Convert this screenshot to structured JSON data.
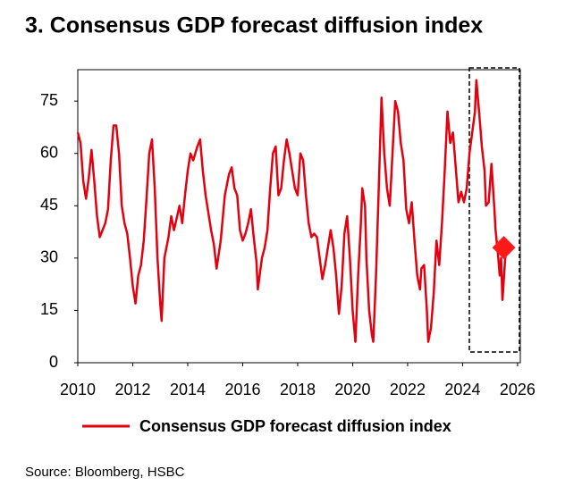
{
  "chart_data": {
    "type": "line",
    "title": "3. Consensus GDP forecast diffusion index",
    "source": "Source: Bloomberg, HSBC",
    "xlim": [
      2010,
      2026.1
    ],
    "ylim": [
      0,
      84
    ],
    "xticks": [
      2010,
      2012,
      2014,
      2016,
      2018,
      2020,
      2022,
      2024,
      2026
    ],
    "yticks": [
      0,
      15,
      30,
      45,
      60,
      75
    ],
    "grid": false,
    "legend": "bottom",
    "x": [
      2010.0,
      2010.1,
      2010.2,
      2010.3,
      2010.4,
      2010.5,
      2010.6,
      2010.7,
      2010.8,
      2010.9,
      2011.0,
      2011.1,
      2011.2,
      2011.3,
      2011.4,
      2011.5,
      2011.6,
      2011.7,
      2011.8,
      2011.9,
      2012.0,
      2012.1,
      2012.2,
      2012.3,
      2012.4,
      2012.5,
      2012.6,
      2012.7,
      2012.8,
      2012.9,
      2013.0,
      2013.05,
      2013.15,
      2013.3,
      2013.4,
      2013.5,
      2013.7,
      2013.8,
      2013.9,
      2014.0,
      2014.1,
      2014.2,
      2014.35,
      2014.45,
      2014.55,
      2014.65,
      2014.75,
      2014.85,
      2014.95,
      2015.05,
      2015.2,
      2015.35,
      2015.5,
      2015.6,
      2015.7,
      2015.8,
      2015.9,
      2016.0,
      2016.1,
      2016.2,
      2016.3,
      2016.4,
      2016.5,
      2016.55,
      2016.7,
      2016.8,
      2016.9,
      2017.0,
      2017.1,
      2017.2,
      2017.3,
      2017.4,
      2017.5,
      2017.6,
      2017.7,
      2017.8,
      2017.9,
      2018.0,
      2018.1,
      2018.2,
      2018.3,
      2018.4,
      2018.5,
      2018.6,
      2018.7,
      2018.8,
      2018.9,
      2019.0,
      2019.1,
      2019.2,
      2019.3,
      2019.4,
      2019.5,
      2019.6,
      2019.7,
      2019.8,
      2019.9,
      2020.0,
      2020.1,
      2020.2,
      2020.3,
      2020.35,
      2020.45,
      2020.5,
      2020.6,
      2020.7,
      2020.75,
      2020.85,
      2020.95,
      2021.05,
      2021.15,
      2021.25,
      2021.35,
      2021.45,
      2021.55,
      2021.65,
      2021.75,
      2021.85,
      2021.95,
      2022.05,
      2022.15,
      2022.25,
      2022.35,
      2022.45,
      2022.5,
      2022.6,
      2022.7,
      2022.75,
      2022.85,
      2022.95,
      2023.05,
      2023.15,
      2023.25,
      2023.35,
      2023.45,
      2023.55,
      2023.65,
      2023.75,
      2023.85,
      2023.95,
      2024.05,
      2024.15,
      2024.25,
      2024.35,
      2024.45,
      2024.5,
      2024.6,
      2024.7,
      2024.8,
      2024.85,
      2024.95,
      2025.05,
      2025.15,
      2025.2,
      2025.3,
      2025.35,
      2025.4,
      2025.45,
      2025.55,
      2025.6
    ],
    "series": [
      {
        "name": "Consensus GDP forecast diffusion index",
        "color": "#e3000f",
        "values": [
          66,
          63,
          52,
          47,
          53,
          61,
          52,
          42,
          36,
          38,
          40,
          44,
          58,
          68,
          68,
          60,
          45,
          40,
          37,
          30,
          22,
          17,
          25,
          28,
          35,
          47,
          60,
          64,
          50,
          30,
          17,
          12,
          30,
          36,
          42,
          38,
          45,
          40,
          48,
          55,
          60,
          58,
          62,
          64,
          55,
          48,
          43,
          38,
          34,
          27,
          35,
          48,
          54,
          56,
          50,
          48,
          38,
          35,
          37,
          40,
          44,
          36,
          29,
          21,
          30,
          33,
          38,
          50,
          60,
          62,
          48,
          50,
          58,
          64,
          60,
          55,
          50,
          48,
          60,
          58,
          48,
          40,
          36,
          37,
          36,
          30,
          24,
          28,
          33,
          38,
          33,
          25,
          14,
          22,
          37,
          42,
          30,
          15,
          6,
          25,
          40,
          50,
          45,
          30,
          15,
          8,
          6,
          25,
          50,
          76,
          60,
          50,
          45,
          60,
          75,
          72,
          63,
          58,
          44,
          40,
          46,
          35,
          25,
          21,
          27,
          28,
          15,
          6,
          10,
          20,
          35,
          28,
          40,
          55,
          72,
          63,
          66,
          56,
          46,
          49,
          46,
          50,
          60,
          66,
          72,
          81,
          72,
          62,
          55,
          45,
          46,
          57,
          45,
          38,
          30,
          25,
          30,
          18,
          30,
          33
        ]
      }
    ],
    "forecast_point": {
      "x": 2025.5,
      "y": 33,
      "color": "#ff1a1a"
    }
  }
}
